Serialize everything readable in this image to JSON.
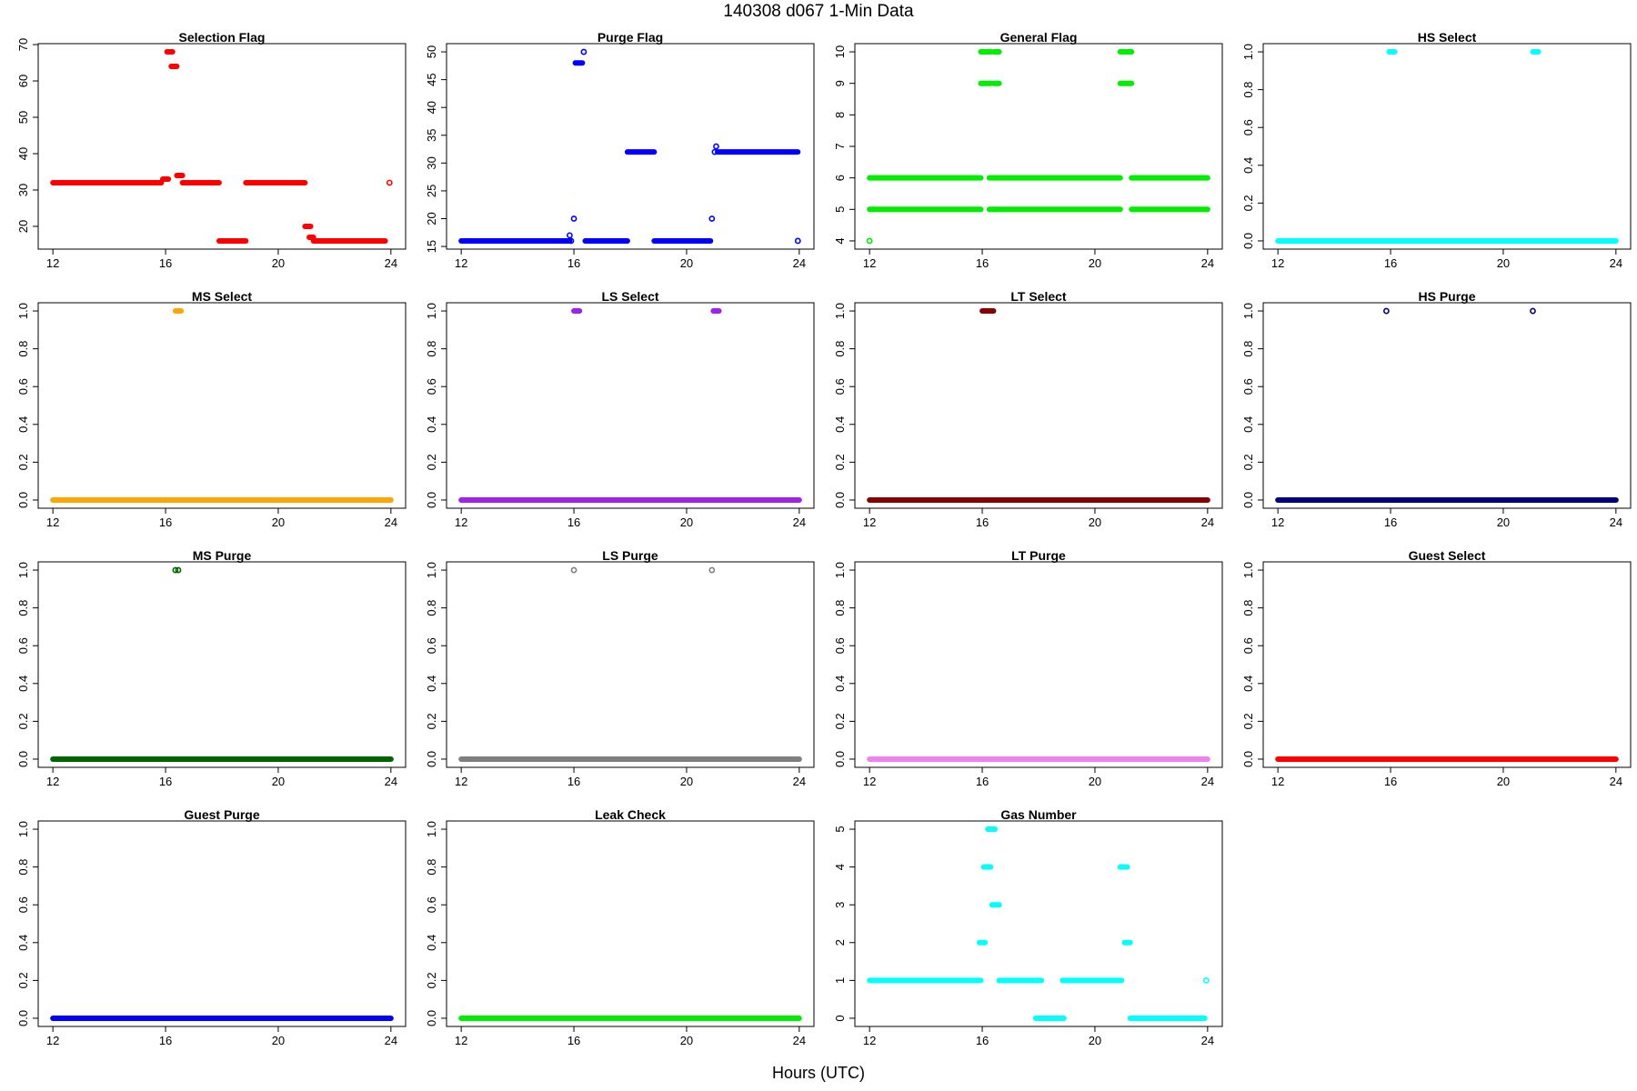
{
  "page": {
    "title": "140308   d067   1-Min Data",
    "xlabel": "Hours (UTC)"
  },
  "chart_data": [
    {
      "type": "scatter",
      "title": "Selection Flag",
      "color": "#ff0000",
      "xlim": [
        12,
        24
      ],
      "ylim": [
        16,
        68
      ],
      "yticks": [
        20,
        30,
        40,
        50,
        60,
        70
      ],
      "xticks": [
        12,
        16,
        20,
        24
      ],
      "segments": [
        [
          12,
          15.85,
          32
        ],
        [
          15.9,
          16.1,
          33
        ],
        [
          16.05,
          16.25,
          68
        ],
        [
          16.2,
          16.4,
          64
        ],
        [
          16.4,
          16.6,
          34
        ],
        [
          16.6,
          17.9,
          32
        ],
        [
          17.9,
          18.85,
          16
        ],
        [
          18.85,
          20.95,
          32
        ],
        [
          20.95,
          21.15,
          20
        ],
        [
          21.1,
          21.25,
          17
        ],
        [
          21.25,
          23.8,
          16
        ]
      ],
      "points": [
        [
          23.95,
          32
        ]
      ]
    },
    {
      "type": "scatter",
      "title": "Purge Flag",
      "color": "#0000ff",
      "xlim": [
        12,
        24
      ],
      "ylim": [
        16,
        50
      ],
      "yticks": [
        15,
        20,
        25,
        30,
        35,
        40,
        45,
        50
      ],
      "xticks": [
        12,
        16,
        20,
        24
      ],
      "segments": [
        [
          12,
          15.85,
          16
        ],
        [
          16.05,
          16.3,
          48
        ],
        [
          16.4,
          17.9,
          16
        ],
        [
          17.9,
          18.85,
          32
        ],
        [
          18.85,
          20.85,
          16
        ],
        [
          21.1,
          23.95,
          32
        ]
      ],
      "points": [
        [
          15.85,
          17
        ],
        [
          15.9,
          16
        ],
        [
          16.0,
          20
        ],
        [
          16.35,
          50
        ],
        [
          20.9,
          20
        ],
        [
          21.0,
          32
        ],
        [
          21.05,
          33
        ],
        [
          23.95,
          16
        ]
      ]
    },
    {
      "type": "scatter",
      "title": "General Flag",
      "color": "#00ee00",
      "xlim": [
        12,
        24
      ],
      "ylim": [
        4,
        10
      ],
      "yticks": [
        4,
        5,
        6,
        7,
        8,
        9,
        10
      ],
      "xticks": [
        12,
        16,
        20,
        24
      ],
      "segments": [
        [
          12,
          15.95,
          6
        ],
        [
          12,
          15.95,
          5
        ],
        [
          15.95,
          16.3,
          10
        ],
        [
          15.95,
          16.3,
          9
        ],
        [
          16.25,
          16.5,
          6
        ],
        [
          16.25,
          16.5,
          5
        ],
        [
          16.4,
          16.6,
          10
        ],
        [
          16.4,
          16.6,
          9
        ],
        [
          16.5,
          20.9,
          6
        ],
        [
          16.5,
          20.9,
          5
        ],
        [
          20.9,
          21.3,
          10
        ],
        [
          20.9,
          21.3,
          9
        ],
        [
          21.3,
          24,
          6
        ],
        [
          21.3,
          24,
          5
        ]
      ],
      "points": [
        [
          12.0,
          4
        ]
      ]
    },
    {
      "type": "scatter",
      "title": "HS Select",
      "color": "#00ffff",
      "xlim": [
        12,
        24
      ],
      "ylim": [
        0,
        1
      ],
      "yticks": [
        0.0,
        0.2,
        0.4,
        0.6,
        0.8,
        1.0
      ],
      "xticks": [
        12,
        16,
        20,
        24
      ],
      "segments": [
        [
          12,
          24,
          0
        ],
        [
          15.95,
          16.15,
          1
        ],
        [
          21.05,
          21.25,
          1
        ]
      ],
      "points": []
    },
    {
      "type": "scatter",
      "title": "MS Select",
      "color": "#ffa500",
      "xlim": [
        12,
        24
      ],
      "ylim": [
        0,
        1
      ],
      "yticks": [
        0.0,
        0.2,
        0.4,
        0.6,
        0.8,
        1.0
      ],
      "xticks": [
        12,
        16,
        20,
        24
      ],
      "segments": [
        [
          12,
          24,
          0
        ],
        [
          16.35,
          16.55,
          1
        ]
      ],
      "points": []
    },
    {
      "type": "scatter",
      "title": "LS Select",
      "color": "#a020f0",
      "xlim": [
        12,
        24
      ],
      "ylim": [
        0,
        1
      ],
      "yticks": [
        0.0,
        0.2,
        0.4,
        0.6,
        0.8,
        1.0
      ],
      "xticks": [
        12,
        16,
        20,
        24
      ],
      "segments": [
        [
          12,
          24,
          0
        ],
        [
          16.0,
          16.2,
          1
        ],
        [
          20.95,
          21.15,
          1
        ]
      ],
      "points": []
    },
    {
      "type": "scatter",
      "title": "LT Select",
      "color": "#8b0000",
      "xlim": [
        12,
        24
      ],
      "ylim": [
        0,
        1
      ],
      "yticks": [
        0.0,
        0.2,
        0.4,
        0.6,
        0.8,
        1.0
      ],
      "xticks": [
        12,
        16,
        20,
        24
      ],
      "segments": [
        [
          12,
          24,
          0
        ],
        [
          16.0,
          16.4,
          1
        ]
      ],
      "points": []
    },
    {
      "type": "scatter",
      "title": "HS Purge",
      "color": "#000080",
      "xlim": [
        12,
        24
      ],
      "ylim": [
        0,
        1
      ],
      "yticks": [
        0.0,
        0.2,
        0.4,
        0.6,
        0.8,
        1.0
      ],
      "xticks": [
        12,
        16,
        20,
        24
      ],
      "segments": [
        [
          12,
          24,
          0
        ]
      ],
      "points": [
        [
          15.85,
          1
        ],
        [
          21.05,
          1
        ]
      ]
    },
    {
      "type": "scatter",
      "title": "MS Purge",
      "color": "#006400",
      "xlim": [
        12,
        24
      ],
      "ylim": [
        0,
        1
      ],
      "yticks": [
        0.0,
        0.2,
        0.4,
        0.6,
        0.8,
        1.0
      ],
      "xticks": [
        12,
        16,
        20,
        24
      ],
      "segments": [
        [
          12,
          24,
          0
        ]
      ],
      "points": [
        [
          16.35,
          1
        ],
        [
          16.45,
          1
        ]
      ]
    },
    {
      "type": "scatter",
      "title": "LS Purge",
      "color": "#7f7f7f",
      "xlim": [
        12,
        24
      ],
      "ylim": [
        0,
        1
      ],
      "yticks": [
        0.0,
        0.2,
        0.4,
        0.6,
        0.8,
        1.0
      ],
      "xticks": [
        12,
        16,
        20,
        24
      ],
      "segments": [
        [
          12,
          24,
          0
        ]
      ],
      "points": [
        [
          16.0,
          1
        ],
        [
          20.9,
          1
        ]
      ]
    },
    {
      "type": "scatter",
      "title": "LT Purge",
      "color": "#ee82ee",
      "xlim": [
        12,
        24
      ],
      "ylim": [
        0,
        1
      ],
      "yticks": [
        0.0,
        0.2,
        0.4,
        0.6,
        0.8,
        1.0
      ],
      "xticks": [
        12,
        16,
        20,
        24
      ],
      "segments": [
        [
          12,
          24,
          0
        ]
      ],
      "points": []
    },
    {
      "type": "scatter",
      "title": "Guest Select",
      "color": "#ff0000",
      "xlim": [
        12,
        24
      ],
      "ylim": [
        0,
        1
      ],
      "yticks": [
        0.0,
        0.2,
        0.4,
        0.6,
        0.8,
        1.0
      ],
      "xticks": [
        12,
        16,
        20,
        24
      ],
      "segments": [
        [
          12,
          24,
          0
        ]
      ],
      "points": []
    },
    {
      "type": "scatter",
      "title": "Guest Purge",
      "color": "#0000ff",
      "xlim": [
        12,
        24
      ],
      "ylim": [
        0,
        1
      ],
      "yticks": [
        0.0,
        0.2,
        0.4,
        0.6,
        0.8,
        1.0
      ],
      "xticks": [
        12,
        16,
        20,
        24
      ],
      "segments": [
        [
          12,
          24,
          0
        ]
      ],
      "points": []
    },
    {
      "type": "scatter",
      "title": "Leak Check",
      "color": "#00ee00",
      "xlim": [
        12,
        24
      ],
      "ylim": [
        0,
        1
      ],
      "yticks": [
        0.0,
        0.2,
        0.4,
        0.6,
        0.8,
        1.0
      ],
      "xticks": [
        12,
        16,
        20,
        24
      ],
      "segments": [
        [
          12,
          24,
          0
        ]
      ],
      "points": []
    },
    {
      "type": "scatter",
      "title": "Gas Number",
      "color": "#00ffff",
      "xlim": [
        12,
        24
      ],
      "ylim": [
        0,
        5
      ],
      "yticks": [
        0,
        1,
        2,
        3,
        4,
        5
      ],
      "xticks": [
        12,
        16,
        20,
        24
      ],
      "segments": [
        [
          12,
          15.95,
          1
        ],
        [
          15.9,
          16.1,
          2
        ],
        [
          16.05,
          16.3,
          4
        ],
        [
          16.2,
          16.45,
          5
        ],
        [
          16.35,
          16.6,
          3
        ],
        [
          16.6,
          18.1,
          1
        ],
        [
          17.9,
          18.9,
          0
        ],
        [
          18.85,
          20.95,
          1
        ],
        [
          20.9,
          21.15,
          4
        ],
        [
          21.05,
          21.25,
          2
        ],
        [
          21.25,
          23.9,
          0
        ]
      ],
      "points": [
        [
          23.95,
          1
        ]
      ]
    }
  ]
}
